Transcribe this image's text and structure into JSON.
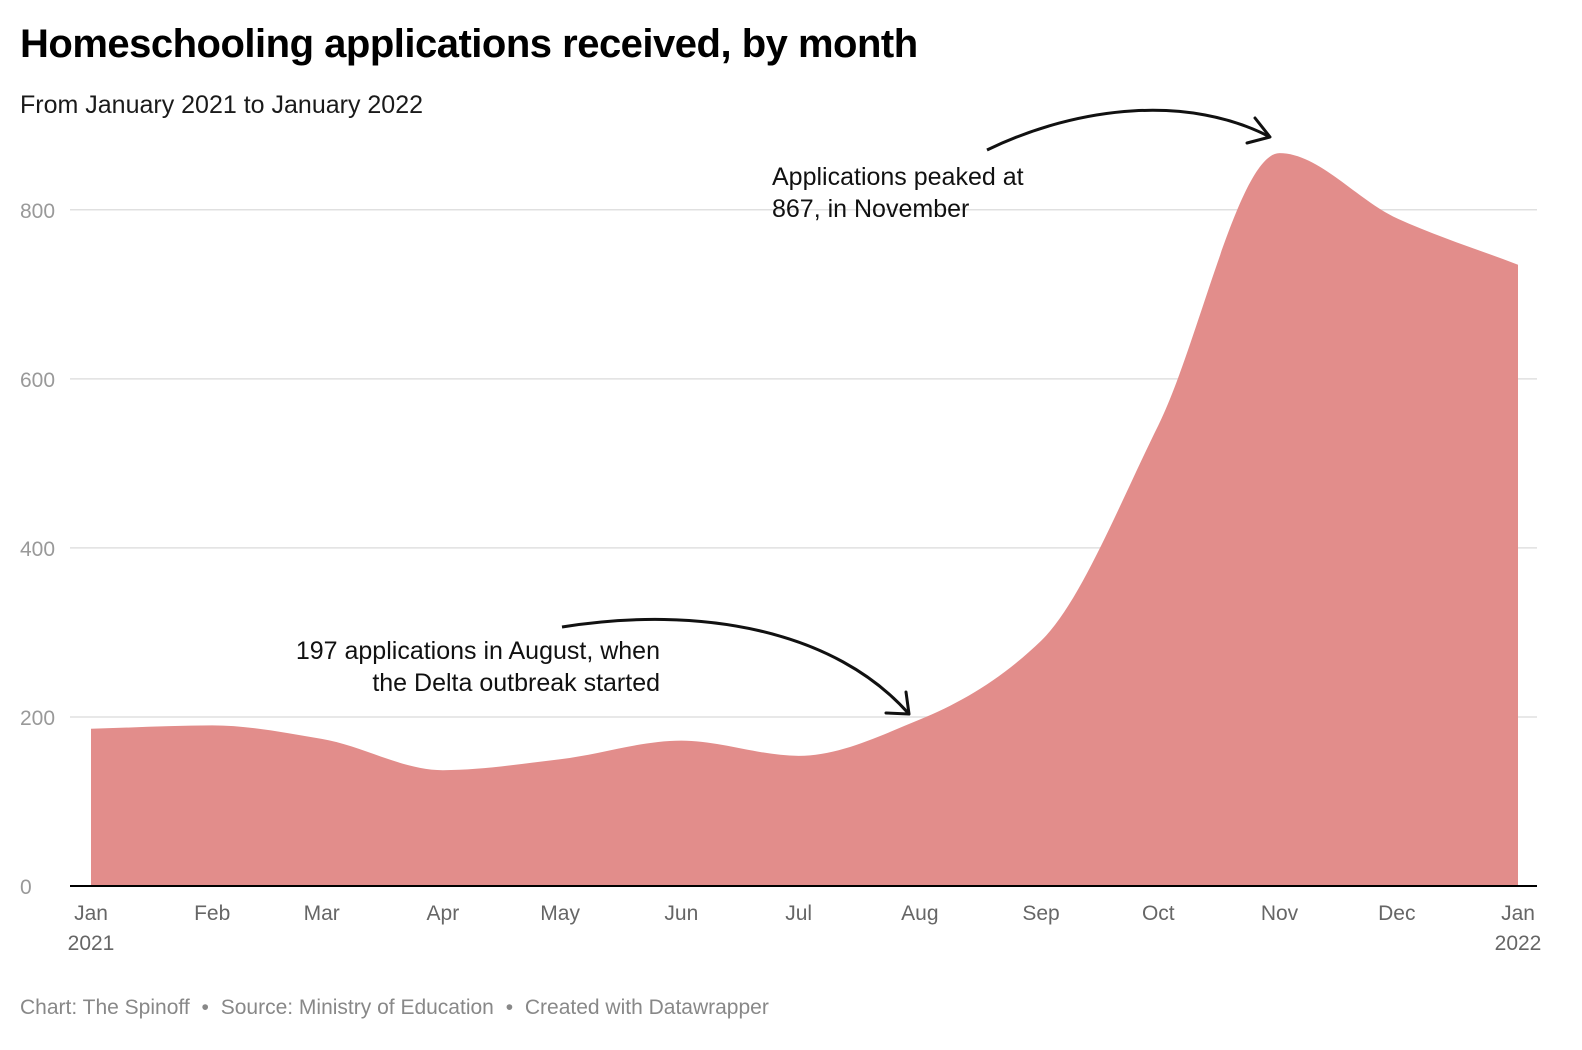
{
  "title": "Homeschooling applications received, by month",
  "subtitle": "From January 2021 to January 2022",
  "footer": {
    "chart_credit": "Chart: The Spinoff",
    "source": "Source: Ministry of Education",
    "created_with": "Created with Datawrapper",
    "separator": "•"
  },
  "colors": {
    "area": "#e28d8b",
    "grid": "#e0e0e0",
    "axis": "#000000",
    "tick_text": "#999999",
    "x_text": "#666666"
  },
  "annotations": [
    {
      "id": "aug",
      "line1": "197 applications in August, when",
      "line2": "the Delta outbreak started"
    },
    {
      "id": "nov",
      "line1": "Applications peaked at",
      "line2": "867, in November"
    }
  ],
  "chart_data": {
    "type": "area",
    "title": "Homeschooling applications received, by month",
    "xlabel": "",
    "ylabel": "",
    "ylim": [
      0,
      880
    ],
    "yticks": [
      0,
      200,
      400,
      600,
      800
    ],
    "x_tick_labels": [
      [
        "Jan",
        "2021"
      ],
      [
        "Feb",
        ""
      ],
      [
        "Mar",
        ""
      ],
      [
        "Apr",
        ""
      ],
      [
        "May",
        ""
      ],
      [
        "Jun",
        ""
      ],
      [
        "Jul",
        ""
      ],
      [
        "Aug",
        ""
      ],
      [
        "Sep",
        ""
      ],
      [
        "Oct",
        ""
      ],
      [
        "Nov",
        ""
      ],
      [
        "Dec",
        ""
      ],
      [
        "Jan",
        "2022"
      ]
    ],
    "series": [
      {
        "name": "Applications",
        "dates": [
          "2021-01-01",
          "2021-02-01",
          "2021-03-01",
          "2021-04-01",
          "2021-05-01",
          "2021-06-01",
          "2021-07-01",
          "2021-08-01",
          "2021-09-01",
          "2021-10-01",
          "2021-11-01",
          "2021-12-01",
          "2022-01-01"
        ],
        "values": [
          186,
          190,
          174,
          137,
          150,
          172,
          154,
          197,
          290,
          545,
          867,
          790,
          735
        ]
      }
    ]
  }
}
